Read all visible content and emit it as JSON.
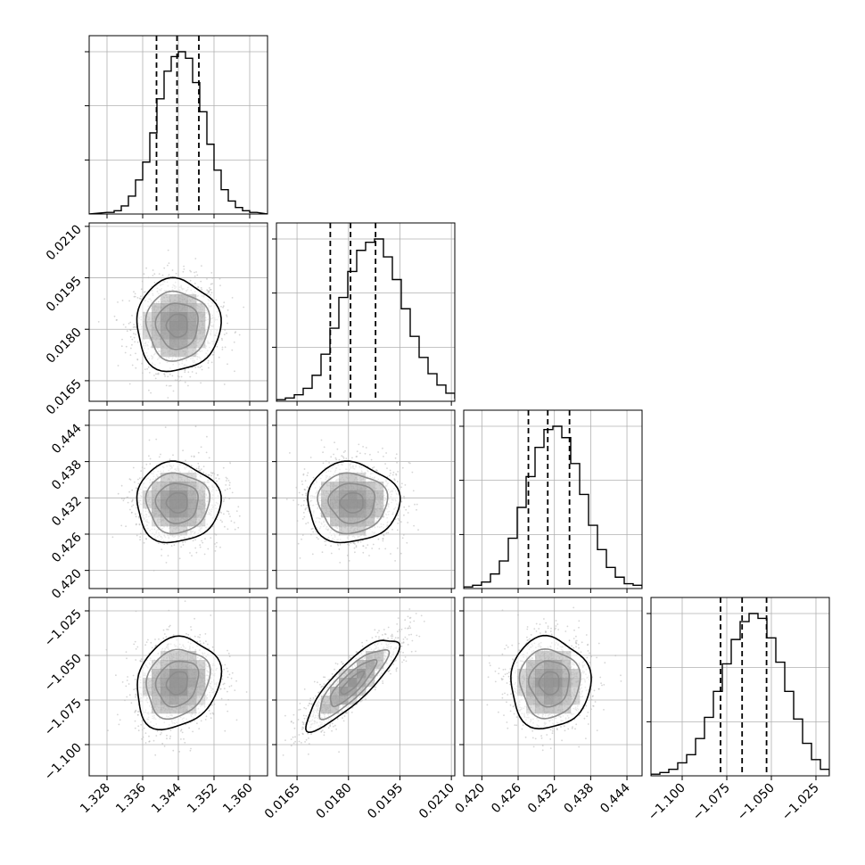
{
  "chart_data": {
    "type": "corner",
    "title": "",
    "grid": true,
    "parameters": [
      {
        "range": [
          1.324,
          1.364
        ],
        "ticks": [
          1.328,
          1.336,
          1.344,
          1.352,
          1.36
        ],
        "tick_labels": [
          "1.328",
          "1.336",
          "1.344",
          "1.352",
          "1.360"
        ],
        "quantiles": [
          1.3391,
          1.3437,
          1.3486
        ],
        "mean": 1.3438,
        "sd": 0.0047,
        "hist": {
          "edges_start": 1.328,
          "bin_width": 0.0016,
          "counts": [
            0.01,
            0.02,
            0.05,
            0.11,
            0.21,
            0.32,
            0.5,
            0.71,
            0.88,
            0.97,
            1.0,
            0.96,
            0.81,
            0.63,
            0.43,
            0.27,
            0.15,
            0.08,
            0.04,
            0.02,
            0.01
          ]
        },
        "hist_yticks": [
          0.333,
          0.667,
          1.0
        ]
      },
      {
        "range": [
          0.0159,
          0.0211
        ],
        "ticks": [
          0.0165,
          0.018,
          0.0195,
          0.021
        ],
        "tick_labels": [
          "0.0165",
          "0.0180",
          "0.0195",
          "0.0210"
        ],
        "quantiles": [
          0.01747,
          0.01806,
          0.01879
        ],
        "mean": 0.01811,
        "sd": 0.00067,
        "hist": {
          "edges_start": 0.0159,
          "bin_width": 0.00026,
          "counts": [
            0.01,
            0.02,
            0.04,
            0.08,
            0.16,
            0.29,
            0.45,
            0.64,
            0.8,
            0.93,
            0.98,
            1.0,
            0.89,
            0.75,
            0.57,
            0.4,
            0.27,
            0.17,
            0.1,
            0.05,
            0.02
          ]
        },
        "hist_yticks": [
          0.333,
          0.667,
          1.0
        ]
      },
      {
        "range": [
          0.417,
          0.4465
        ],
        "ticks": [
          0.42,
          0.426,
          0.432,
          0.438,
          0.444
        ],
        "tick_labels": [
          "0.420",
          "0.426",
          "0.432",
          "0.438",
          "0.444"
        ],
        "quantiles": [
          0.4277,
          0.4309,
          0.4345
        ],
        "mean": 0.4312,
        "sd": 0.0033,
        "hist": {
          "edges_start": 0.417,
          "bin_width": 0.001475,
          "counts": [
            0.01,
            0.02,
            0.04,
            0.09,
            0.17,
            0.31,
            0.5,
            0.69,
            0.87,
            0.98,
            1.0,
            0.93,
            0.77,
            0.58,
            0.39,
            0.24,
            0.13,
            0.07,
            0.03,
            0.02,
            0.01
          ]
        },
        "hist_yticks": [
          0.333,
          0.667,
          1.0
        ]
      },
      {
        "range": [
          -1.1175,
          -1.0175
        ],
        "ticks": [
          -1.1,
          -1.075,
          -1.05,
          -1.025
        ],
        "tick_labels": [
          "−1.100",
          "−1.075",
          "−1.050",
          "−1.025"
        ],
        "quantiles": [
          -1.0785,
          -1.0664,
          -1.0527
        ],
        "mean": -1.0655,
        "sd": 0.0128,
        "hist": {
          "edges_start": -1.1175,
          "bin_width": 0.005,
          "counts": [
            0.01,
            0.02,
            0.04,
            0.08,
            0.13,
            0.23,
            0.36,
            0.52,
            0.69,
            0.84,
            0.95,
            1.0,
            0.97,
            0.85,
            0.7,
            0.52,
            0.35,
            0.2,
            0.1,
            0.04,
            0.01
          ]
        },
        "hist_yticks": [
          0.333,
          0.667,
          1.0
        ]
      }
    ],
    "correlations": [
      {
        "row": 1,
        "col": 0,
        "rho": 0.0
      },
      {
        "row": 2,
        "col": 0,
        "rho": 0.0
      },
      {
        "row": 2,
        "col": 1,
        "rho": 0.0
      },
      {
        "row": 3,
        "col": 0,
        "rho": 0.18
      },
      {
        "row": 3,
        "col": 1,
        "rho": 0.85
      },
      {
        "row": 3,
        "col": 2,
        "rho": 0.0
      }
    ],
    "contour_levels_sigma": [
      0.5,
      1.0,
      1.5,
      2.0
    ],
    "colors": {
      "line": "#000000",
      "points": "#bbbbbb",
      "grid": "#b0b0b0",
      "density": "#000000"
    }
  }
}
